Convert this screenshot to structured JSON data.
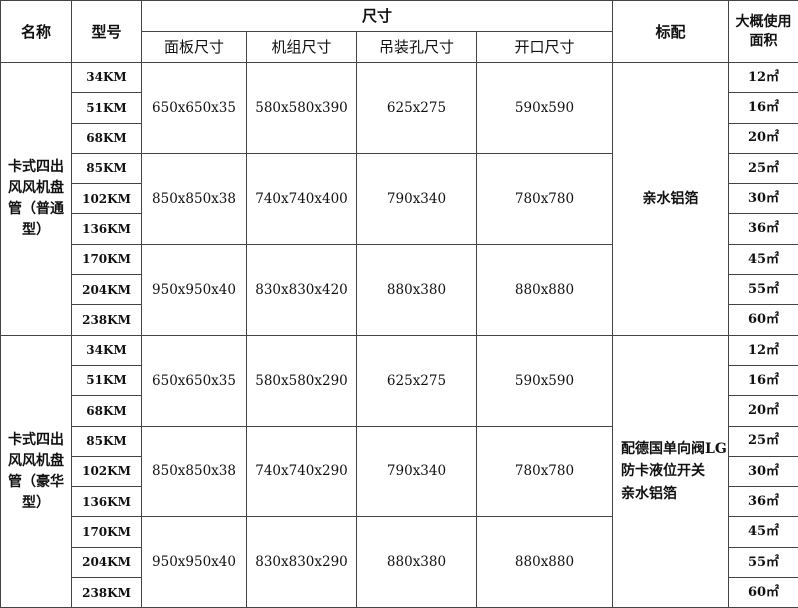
{
  "headers": {
    "name": "名称",
    "model": "型号",
    "size": "尺寸",
    "panel": "面板尺寸",
    "unit": "机组尺寸",
    "hanging": "吊装孔尺寸",
    "opening": "开口尺寸",
    "standard": "标配",
    "area": "大概使用面积"
  },
  "sections": [
    {
      "name": "卡式四出风风机盘管（普通型）",
      "standard": "亲水铝箔",
      "groups": [
        {
          "panel": "650x650x35",
          "unit": "580x580x390",
          "hanging": "625x275",
          "opening": "590x590",
          "rows": [
            {
              "model": "34KM",
              "area": "12㎡"
            },
            {
              "model": "51KM",
              "area": "16㎡"
            },
            {
              "model": "68KM",
              "area": "20㎡"
            }
          ]
        },
        {
          "panel": "850x850x38",
          "unit": "740x740x400",
          "hanging": "790x340",
          "opening": "780x780",
          "rows": [
            {
              "model": "85KM",
              "area": "25㎡"
            },
            {
              "model": "102KM",
              "area": "30㎡"
            },
            {
              "model": "136KM",
              "area": "36㎡"
            }
          ]
        },
        {
          "panel": "950x950x40",
          "unit": "830x830x420",
          "hanging": "880x380",
          "opening": "880x880",
          "rows": [
            {
              "model": "170KM",
              "area": "45㎡"
            },
            {
              "model": "204KM",
              "area": "55㎡"
            },
            {
              "model": "238KM",
              "area": "60㎡"
            }
          ]
        }
      ]
    },
    {
      "name": "卡式四出风风机盘管（豪华型）",
      "standard": "配德国单向阀LG防卡液位开关　亲水铝箔",
      "groups": [
        {
          "panel": "650x650x35",
          "unit": "580x580x290",
          "hanging": "625x275",
          "opening": "590x590",
          "rows": [
            {
              "model": "34KM",
              "area": "12㎡"
            },
            {
              "model": "51KM",
              "area": "16㎡"
            },
            {
              "model": "68KM",
              "area": "20㎡"
            }
          ]
        },
        {
          "panel": "850x850x38",
          "unit": "740x740x290",
          "hanging": "790x340",
          "opening": "780x780",
          "rows": [
            {
              "model": "85KM",
              "area": "25㎡"
            },
            {
              "model": "102KM",
              "area": "30㎡"
            },
            {
              "model": "136KM",
              "area": "36㎡"
            }
          ]
        },
        {
          "panel": "950x950x40",
          "unit": "830x830x290",
          "hanging": "880x380",
          "opening": "880x880",
          "rows": [
            {
              "model": "170KM",
              "area": "45㎡"
            },
            {
              "model": "204KM",
              "area": "55㎡"
            },
            {
              "model": "238KM",
              "area": "60㎡"
            }
          ]
        }
      ]
    }
  ]
}
